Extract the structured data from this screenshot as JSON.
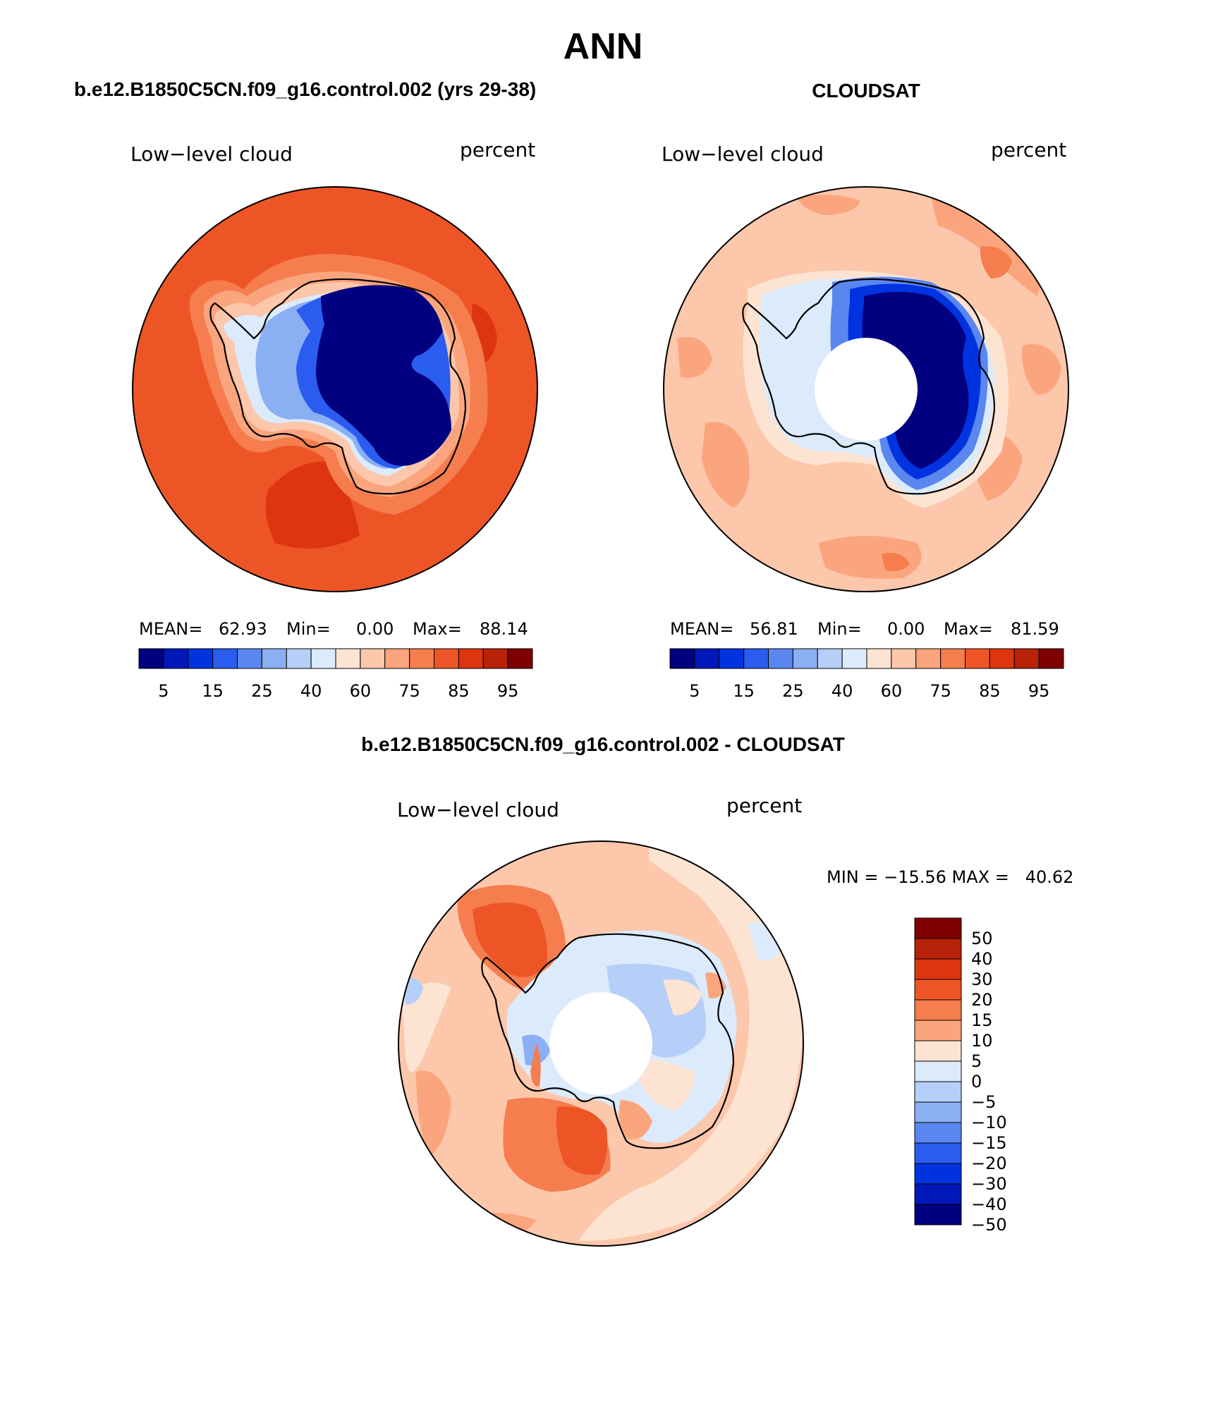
{
  "page": {
    "title": "ANN"
  },
  "panels": [
    {
      "id": "model",
      "title": "b.e12.B1850C5CN.f09_g16.control.002 (yrs 29-38)",
      "variable": "Low−level cloud",
      "units": "percent",
      "stats": {
        "mean_label": "MEAN=",
        "mean_value": "62.93",
        "min_label": "Min=",
        "min_value": "0.00",
        "max_label": "Max=",
        "max_value": "88.14"
      },
      "has_pole_hole": false
    },
    {
      "id": "obs",
      "title": "CLOUDSAT",
      "variable": "Low−level cloud",
      "units": "percent",
      "stats": {
        "mean_label": "MEAN=",
        "mean_value": "56.81",
        "min_label": "Min=",
        "min_value": "0.00",
        "max_label": "Max=",
        "max_value": "81.59"
      },
      "has_pole_hole": true
    },
    {
      "id": "diff",
      "title": "b.e12.B1850C5CN.f09_g16.control.002 - CLOUDSAT",
      "variable": "Low−level cloud",
      "units": "percent",
      "range_text": "MIN = −15.56 MAX =   40.62",
      "has_pole_hole": true
    }
  ],
  "colorbars": {
    "main": {
      "colors": [
        "#000080",
        "#0018b8",
        "#0033e0",
        "#2a5cf0",
        "#5a86f0",
        "#8aaff3",
        "#b6cff8",
        "#dcebfb",
        "#fde4d2",
        "#fcc7ab",
        "#fba57e",
        "#f57d4e",
        "#ee5526",
        "#dc3510",
        "#b82208",
        "#800000"
      ],
      "labels": [
        "5",
        "15",
        "25",
        "40",
        "60",
        "75",
        "85",
        "95"
      ]
    },
    "diff": {
      "colors": [
        "#800000",
        "#b82208",
        "#dc3510",
        "#ee5526",
        "#f57d4e",
        "#fba57e",
        "#fde4d2",
        "#dcebfb",
        "#b6cff8",
        "#8aaff3",
        "#5a86f0",
        "#2a5cf0",
        "#0033e0",
        "#0018b8",
        "#000080"
      ],
      "labels": [
        "50",
        "40",
        "30",
        "20",
        "15",
        "10",
        "5",
        "0",
        "−5",
        "−10",
        "−15",
        "−20",
        "−30",
        "−40",
        "−50"
      ]
    }
  }
}
